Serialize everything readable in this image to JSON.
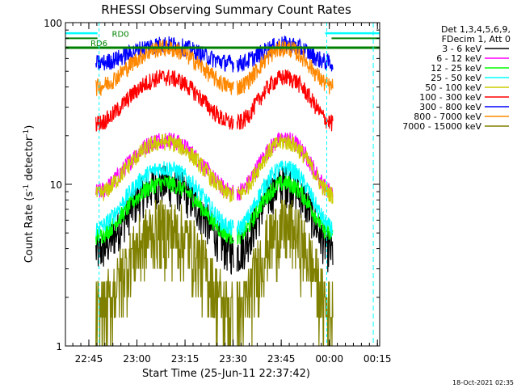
{
  "chart_data": {
    "type": "line",
    "title": "RHESSI Observing Summary Count Rates",
    "xlabel": "Start Time (25-Jun-11 22:37:42)",
    "ylabel_parts": [
      "Count Rate (s",
      "-1",
      " detector",
      "-1",
      ")"
    ],
    "yscale": "log",
    "ylim": [
      1,
      100
    ],
    "xlim_minutes": [
      0,
      98
    ],
    "y_ticks": [
      {
        "v": 1,
        "label": "1"
      },
      {
        "v": 10,
        "label": "10"
      },
      {
        "v": 100,
        "label": "100"
      }
    ],
    "x_ticks": [
      {
        "label": "22:45",
        "t": 7.3
      },
      {
        "label": "23:00",
        "t": 22.3
      },
      {
        "label": "23:15",
        "t": 37.3
      },
      {
        "label": "23:30",
        "t": 52.3
      },
      {
        "label": "23:45",
        "t": 67.3
      },
      {
        "label": "00:00",
        "t": 82.3
      },
      {
        "label": "00:15",
        "t": 97.3
      }
    ],
    "legend_header": [
      "Det 1,3,4,5,6,9,",
      "FDecim 1, Att 0"
    ],
    "series": [
      {
        "name": "3 - 6 keV",
        "color": "#000000",
        "level": 7.0,
        "amp": 0.5
      },
      {
        "name": "6 - 12 keV",
        "color": "#ff00ff",
        "level": 14.0,
        "amp": 0.4
      },
      {
        "name": "12 - 25 keV",
        "color": "#00ff00",
        "level": 7.5,
        "amp": 0.4
      },
      {
        "name": "25 - 50 keV",
        "color": "#00ffff",
        "level": 9.0,
        "amp": 0.45
      },
      {
        "name": "50 - 100 keV",
        "color": "#cccc00",
        "level": 13.5,
        "amp": 0.4
      },
      {
        "name": "100 - 300 keV",
        "color": "#ff0000",
        "level": 35.0,
        "amp": 0.35
      },
      {
        "name": "300 - 800 keV",
        "color": "#0000ff",
        "level": 65.0,
        "amp": 0.15
      },
      {
        "name": "800 - 7000 keV",
        "color": "#ff8800",
        "level": 55.0,
        "amp": 0.3
      },
      {
        "name": "7000 - 15000 keV",
        "color": "#808000",
        "level": 3.5,
        "amp": 0.6
      }
    ],
    "annotations": [
      {
        "text": "RD0",
        "t": 14.5,
        "y": 80,
        "color": "#008000"
      },
      {
        "text": "RD6",
        "t": 7.8,
        "y": 70,
        "color": "#008000"
      }
    ],
    "footer": "18-Oct-2021 02:35"
  }
}
